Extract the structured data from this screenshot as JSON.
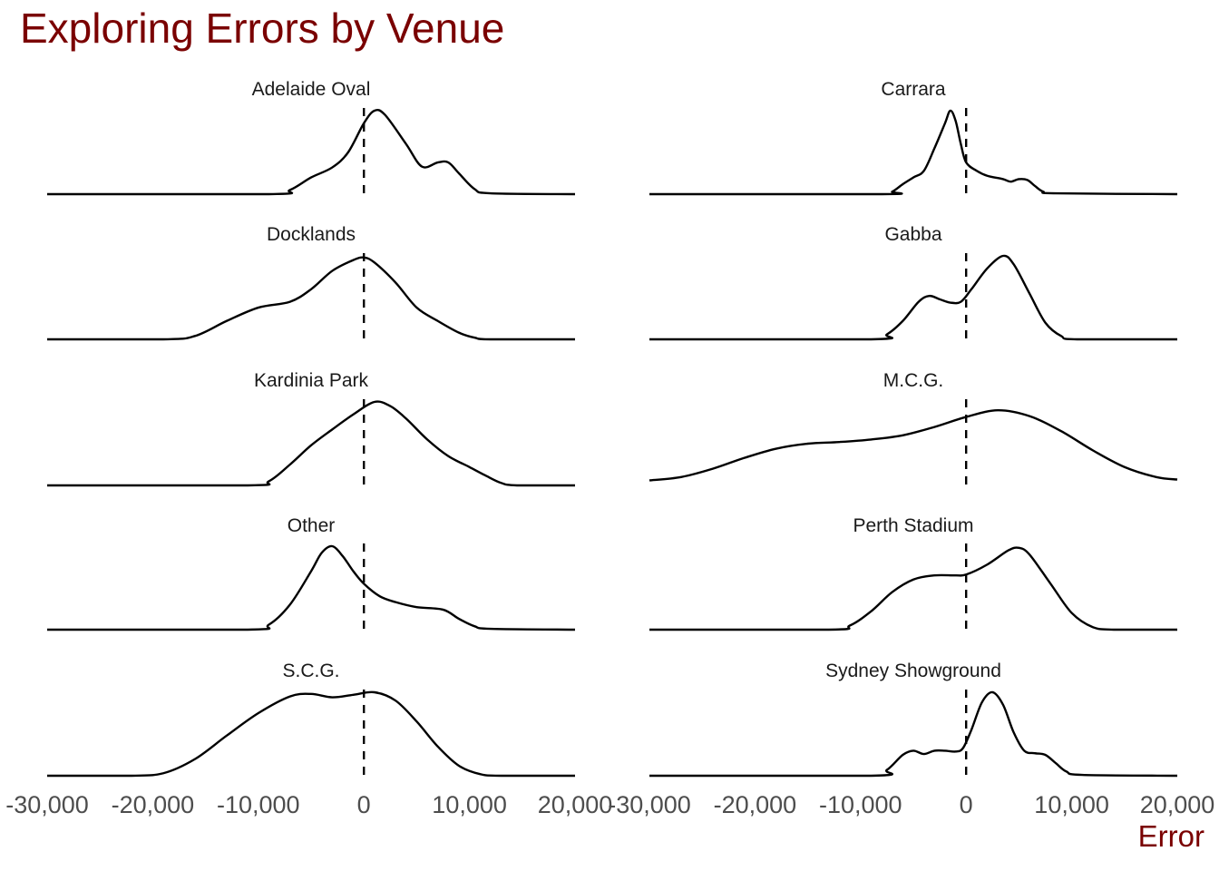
{
  "chart_data": {
    "type": "area",
    "title": "Exploring Errors by Venue",
    "xlabel": "Error",
    "ylabel": "",
    "xlim": [
      -30000,
      20000
    ],
    "x_ticks": [
      -30000,
      -20000,
      -10000,
      0,
      10000,
      20000
    ],
    "x_tick_labels": [
      "-30,000",
      "-20,000",
      "-10,000",
      "0",
      "10,000",
      "20,000"
    ],
    "reference_line": {
      "x": 0,
      "style": "dashed"
    },
    "grid": false,
    "legend": "none",
    "layout": {
      "rows": 5,
      "cols": 2
    },
    "panels": [
      {
        "name": "Adelaide Oval",
        "density": [
          [
            -30000,
            0
          ],
          [
            -9000,
            0
          ],
          [
            -7000,
            0.05
          ],
          [
            -5000,
            0.2
          ],
          [
            -3000,
            0.32
          ],
          [
            -1500,
            0.5
          ],
          [
            0,
            0.85
          ],
          [
            1000,
            1.0
          ],
          [
            2000,
            0.95
          ],
          [
            4000,
            0.6
          ],
          [
            5500,
            0.33
          ],
          [
            7000,
            0.38
          ],
          [
            8000,
            0.38
          ],
          [
            9000,
            0.25
          ],
          [
            10500,
            0.06
          ],
          [
            12000,
            0.01
          ],
          [
            20000,
            0
          ]
        ]
      },
      {
        "name": "Carrara",
        "density": [
          [
            -30000,
            0
          ],
          [
            -8000,
            0
          ],
          [
            -7000,
            0.03
          ],
          [
            -6000,
            0.12
          ],
          [
            -5000,
            0.2
          ],
          [
            -4000,
            0.28
          ],
          [
            -3000,
            0.55
          ],
          [
            -2000,
            0.85
          ],
          [
            -1500,
            1.0
          ],
          [
            -1000,
            0.88
          ],
          [
            -500,
            0.6
          ],
          [
            0,
            0.38
          ],
          [
            1000,
            0.28
          ],
          [
            2000,
            0.22
          ],
          [
            3500,
            0.18
          ],
          [
            4200,
            0.15
          ],
          [
            5000,
            0.18
          ],
          [
            5800,
            0.17
          ],
          [
            6500,
            0.1
          ],
          [
            7300,
            0.03
          ],
          [
            8500,
            0.01
          ],
          [
            20000,
            0
          ]
        ]
      },
      {
        "name": "Docklands",
        "density": [
          [
            -30000,
            0
          ],
          [
            -19000,
            0
          ],
          [
            -16000,
            0.04
          ],
          [
            -13000,
            0.22
          ],
          [
            -10000,
            0.38
          ],
          [
            -7000,
            0.45
          ],
          [
            -5000,
            0.6
          ],
          [
            -3000,
            0.82
          ],
          [
            -1000,
            0.95
          ],
          [
            0,
            0.98
          ],
          [
            1000,
            0.92
          ],
          [
            3000,
            0.68
          ],
          [
            5000,
            0.38
          ],
          [
            7000,
            0.22
          ],
          [
            9000,
            0.08
          ],
          [
            10500,
            0.02
          ],
          [
            12000,
            0
          ],
          [
            20000,
            0
          ]
        ]
      },
      {
        "name": "Gabba",
        "density": [
          [
            -30000,
            0
          ],
          [
            -9000,
            0
          ],
          [
            -7500,
            0.06
          ],
          [
            -6000,
            0.22
          ],
          [
            -4500,
            0.45
          ],
          [
            -3500,
            0.52
          ],
          [
            -2500,
            0.48
          ],
          [
            -1500,
            0.44
          ],
          [
            -500,
            0.45
          ],
          [
            500,
            0.6
          ],
          [
            2000,
            0.85
          ],
          [
            3500,
            1.0
          ],
          [
            4500,
            0.9
          ],
          [
            6000,
            0.55
          ],
          [
            7500,
            0.2
          ],
          [
            9000,
            0.04
          ],
          [
            10500,
            0
          ],
          [
            20000,
            0
          ]
        ]
      },
      {
        "name": "Kardinia Park",
        "density": [
          [
            -30000,
            0
          ],
          [
            -11000,
            0
          ],
          [
            -9000,
            0.05
          ],
          [
            -7000,
            0.25
          ],
          [
            -5000,
            0.48
          ],
          [
            -3000,
            0.67
          ],
          [
            -1000,
            0.85
          ],
          [
            1000,
            1.0
          ],
          [
            2500,
            0.95
          ],
          [
            4000,
            0.8
          ],
          [
            6000,
            0.55
          ],
          [
            8000,
            0.35
          ],
          [
            10000,
            0.22
          ],
          [
            11500,
            0.12
          ],
          [
            13000,
            0.03
          ],
          [
            14500,
            0
          ],
          [
            20000,
            0
          ]
        ]
      },
      {
        "name": "M.C.G.",
        "density": [
          [
            -30000,
            0.06
          ],
          [
            -27000,
            0.1
          ],
          [
            -24000,
            0.2
          ],
          [
            -21000,
            0.33
          ],
          [
            -18000,
            0.44
          ],
          [
            -15000,
            0.5
          ],
          [
            -12000,
            0.52
          ],
          [
            -9000,
            0.55
          ],
          [
            -6000,
            0.6
          ],
          [
            -3000,
            0.7
          ],
          [
            0,
            0.82
          ],
          [
            3000,
            0.9
          ],
          [
            6000,
            0.83
          ],
          [
            9000,
            0.65
          ],
          [
            12000,
            0.42
          ],
          [
            15000,
            0.22
          ],
          [
            18000,
            0.1
          ],
          [
            20000,
            0.07
          ]
        ]
      },
      {
        "name": "Other",
        "density": [
          [
            -30000,
            0
          ],
          [
            -11000,
            0
          ],
          [
            -9000,
            0.06
          ],
          [
            -7000,
            0.3
          ],
          [
            -5000,
            0.7
          ],
          [
            -4000,
            0.92
          ],
          [
            -3000,
            1.0
          ],
          [
            -2000,
            0.88
          ],
          [
            -1000,
            0.7
          ],
          [
            0,
            0.55
          ],
          [
            1500,
            0.4
          ],
          [
            3000,
            0.33
          ],
          [
            5000,
            0.27
          ],
          [
            7500,
            0.24
          ],
          [
            9000,
            0.13
          ],
          [
            10500,
            0.04
          ],
          [
            12000,
            0.01
          ],
          [
            20000,
            0
          ]
        ]
      },
      {
        "name": "Perth Stadium",
        "density": [
          [
            -30000,
            0
          ],
          [
            -13000,
            0
          ],
          [
            -11000,
            0.05
          ],
          [
            -9000,
            0.22
          ],
          [
            -7000,
            0.45
          ],
          [
            -5000,
            0.6
          ],
          [
            -3000,
            0.65
          ],
          [
            -1000,
            0.65
          ],
          [
            0,
            0.66
          ],
          [
            2000,
            0.78
          ],
          [
            4000,
            0.95
          ],
          [
            5000,
            0.98
          ],
          [
            6000,
            0.9
          ],
          [
            8000,
            0.55
          ],
          [
            10000,
            0.2
          ],
          [
            12000,
            0.03
          ],
          [
            14000,
            0
          ],
          [
            20000,
            0
          ]
        ]
      },
      {
        "name": "S.C.G.",
        "density": [
          [
            -30000,
            0
          ],
          [
            -22000,
            0
          ],
          [
            -19000,
            0.03
          ],
          [
            -16000,
            0.2
          ],
          [
            -13000,
            0.48
          ],
          [
            -10000,
            0.75
          ],
          [
            -7000,
            0.95
          ],
          [
            -5000,
            0.98
          ],
          [
            -3000,
            0.94
          ],
          [
            -1000,
            0.97
          ],
          [
            1000,
            1.0
          ],
          [
            3000,
            0.9
          ],
          [
            5000,
            0.65
          ],
          [
            7000,
            0.35
          ],
          [
            9000,
            0.12
          ],
          [
            11000,
            0.02
          ],
          [
            13000,
            0
          ],
          [
            20000,
            0
          ]
        ]
      },
      {
        "name": "Sydney Showground",
        "density": [
          [
            -30000,
            0
          ],
          [
            -9000,
            0
          ],
          [
            -7500,
            0.07
          ],
          [
            -6000,
            0.25
          ],
          [
            -5000,
            0.3
          ],
          [
            -4000,
            0.26
          ],
          [
            -3000,
            0.3
          ],
          [
            -2000,
            0.3
          ],
          [
            -1000,
            0.29
          ],
          [
            -300,
            0.33
          ],
          [
            500,
            0.55
          ],
          [
            1500,
            0.88
          ],
          [
            2500,
            1.0
          ],
          [
            3500,
            0.85
          ],
          [
            4500,
            0.52
          ],
          [
            5500,
            0.3
          ],
          [
            6500,
            0.27
          ],
          [
            7500,
            0.25
          ],
          [
            8500,
            0.15
          ],
          [
            9500,
            0.05
          ],
          [
            11000,
            0.01
          ],
          [
            20000,
            0
          ]
        ]
      }
    ]
  }
}
